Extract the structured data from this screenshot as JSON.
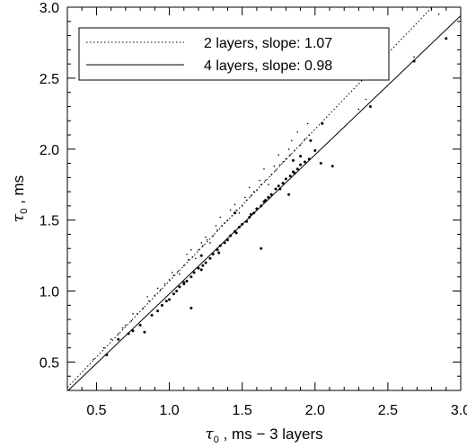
{
  "chart_data": {
    "type": "scatter",
    "title": "",
    "xlabel": {
      "symbol": "τ",
      "subscript": "0",
      "rest": " , ms − 3 layers"
    },
    "ylabel": {
      "symbol": "τ",
      "subscript": "0",
      "rest": " , ms"
    },
    "xlim": [
      0.3,
      3.0
    ],
    "ylim": [
      0.3,
      3.0
    ],
    "xticks": [
      "0.5",
      "1.0",
      "1.5",
      "2.0",
      "2.5",
      "3.0"
    ],
    "yticks": [
      "0.5",
      "1.0",
      "1.5",
      "2.0",
      "2.5",
      "3.0"
    ],
    "grid": false,
    "legend_position": "top-left",
    "series": [
      {
        "name": "2 layers, slope: 1.07",
        "line_style": "dotted",
        "fit": {
          "slope": 1.07,
          "intercept": 0.0
        },
        "marker_size": "small",
        "points": [
          [
            0.48,
            0.52
          ],
          [
            0.55,
            0.6
          ],
          [
            0.6,
            0.66
          ],
          [
            0.65,
            0.7
          ],
          [
            0.7,
            0.76
          ],
          [
            0.74,
            0.79
          ],
          [
            0.78,
            0.84
          ],
          [
            0.82,
            0.88
          ],
          [
            0.86,
            0.93
          ],
          [
            0.9,
            0.97
          ],
          [
            0.94,
            1.01
          ],
          [
            0.97,
            1.05
          ],
          [
            1.0,
            1.08
          ],
          [
            1.03,
            1.11
          ],
          [
            1.06,
            1.14
          ],
          [
            1.1,
            1.18
          ],
          [
            1.13,
            1.22
          ],
          [
            1.16,
            1.24
          ],
          [
            1.2,
            1.29
          ],
          [
            1.23,
            1.32
          ],
          [
            1.26,
            1.36
          ],
          [
            1.3,
            1.39
          ],
          [
            1.33,
            1.43
          ],
          [
            1.36,
            1.46
          ],
          [
            1.4,
            1.5
          ],
          [
            1.43,
            1.53
          ],
          [
            1.46,
            1.57
          ],
          [
            1.5,
            1.6
          ],
          [
            1.53,
            1.64
          ],
          [
            1.56,
            1.67
          ],
          [
            1.6,
            1.71
          ],
          [
            1.63,
            1.75
          ],
          [
            1.66,
            1.78
          ],
          [
            1.7,
            1.82
          ],
          [
            1.73,
            1.85
          ],
          [
            1.76,
            1.89
          ],
          [
            1.8,
            1.93
          ],
          [
            1.83,
            1.96
          ],
          [
            1.86,
            1.99
          ],
          [
            1.9,
            2.03
          ],
          [
            1.93,
            2.07
          ],
          [
            1.96,
            2.1
          ],
          [
            1.02,
            1.13
          ],
          [
            1.12,
            1.26
          ],
          [
            1.22,
            1.34
          ],
          [
            1.32,
            1.46
          ],
          [
            1.42,
            1.57
          ],
          [
            1.52,
            1.66
          ],
          [
            1.62,
            1.78
          ],
          [
            1.72,
            1.88
          ],
          [
            1.82,
            2.0
          ],
          [
            1.88,
            2.12
          ],
          [
            1.95,
            2.18
          ],
          [
            1.07,
            1.12
          ],
          [
            1.18,
            1.23
          ],
          [
            1.28,
            1.34
          ],
          [
            1.38,
            1.48
          ],
          [
            1.48,
            1.55
          ],
          [
            1.58,
            1.7
          ],
          [
            1.68,
            1.75
          ],
          [
            1.78,
            1.91
          ],
          [
            1.84,
            2.06
          ],
          [
            0.92,
            1.02
          ],
          [
            0.85,
            0.96
          ],
          [
            0.75,
            0.84
          ],
          [
            0.68,
            0.74
          ],
          [
            1.15,
            1.29
          ],
          [
            1.25,
            1.38
          ],
          [
            1.35,
            1.52
          ],
          [
            1.45,
            1.61
          ],
          [
            1.55,
            1.73
          ],
          [
            1.65,
            1.86
          ],
          [
            1.75,
            1.96
          ],
          [
            2.35,
            2.35
          ],
          [
            2.42,
            2.5
          ],
          [
            2.68,
            2.65
          ],
          [
            2.85,
            2.95
          ],
          [
            2.3,
            2.28
          ]
        ]
      },
      {
        "name": "4 layers, slope: 0.98",
        "line_style": "solid",
        "fit": {
          "slope": 0.98,
          "intercept": 0.0
        },
        "marker_size": "large",
        "points": [
          [
            0.57,
            0.55
          ],
          [
            0.65,
            0.66
          ],
          [
            0.72,
            0.7
          ],
          [
            0.75,
            0.72
          ],
          [
            0.8,
            0.76
          ],
          [
            0.83,
            0.71
          ],
          [
            0.88,
            0.83
          ],
          [
            0.92,
            0.86
          ],
          [
            0.95,
            0.9
          ],
          [
            0.98,
            0.93
          ],
          [
            1.0,
            0.94
          ],
          [
            1.03,
            0.98
          ],
          [
            1.05,
            1.0
          ],
          [
            1.07,
            1.03
          ],
          [
            1.1,
            1.06
          ],
          [
            1.12,
            1.07
          ],
          [
            1.15,
            1.1
          ],
          [
            1.17,
            1.13
          ],
          [
            1.2,
            1.16
          ],
          [
            1.23,
            1.18
          ],
          [
            1.25,
            1.2
          ],
          [
            1.28,
            1.23
          ],
          [
            1.3,
            1.26
          ],
          [
            1.33,
            1.29
          ],
          [
            1.35,
            1.32
          ],
          [
            1.38,
            1.34
          ],
          [
            1.4,
            1.36
          ],
          [
            1.42,
            1.39
          ],
          [
            1.45,
            1.42
          ],
          [
            1.48,
            1.45
          ],
          [
            1.5,
            1.47
          ],
          [
            1.53,
            1.49
          ],
          [
            1.55,
            1.52
          ],
          [
            1.58,
            1.55
          ],
          [
            1.6,
            1.58
          ],
          [
            1.63,
            1.6
          ],
          [
            1.65,
            1.63
          ],
          [
            1.68,
            1.66
          ],
          [
            1.7,
            1.68
          ],
          [
            1.73,
            1.72
          ],
          [
            1.75,
            1.74
          ],
          [
            1.78,
            1.76
          ],
          [
            1.8,
            1.79
          ],
          [
            1.83,
            1.81
          ],
          [
            1.85,
            1.84
          ],
          [
            1.88,
            1.86
          ],
          [
            1.9,
            1.89
          ],
          [
            1.93,
            1.91
          ],
          [
            1.1,
            1.05
          ],
          [
            1.22,
            1.15
          ],
          [
            1.34,
            1.27
          ],
          [
            1.46,
            1.41
          ],
          [
            1.56,
            1.54
          ],
          [
            1.66,
            1.64
          ],
          [
            1.76,
            1.72
          ],
          [
            1.86,
            1.83
          ],
          [
            1.96,
            1.93
          ],
          [
            2.0,
            1.99
          ],
          [
            2.04,
            1.9
          ],
          [
            2.12,
            1.88
          ],
          [
            1.63,
            1.3
          ],
          [
            1.15,
            0.88
          ],
          [
            1.22,
            1.25
          ],
          [
            1.9,
            1.95
          ],
          [
            1.85,
            1.92
          ],
          [
            1.82,
            1.68
          ],
          [
            2.05,
            2.18
          ],
          [
            2.38,
            2.3
          ],
          [
            2.68,
            2.62
          ],
          [
            2.9,
            2.78
          ],
          [
            1.97,
            2.06
          ],
          [
            1.45,
            1.55
          ]
        ]
      }
    ]
  }
}
